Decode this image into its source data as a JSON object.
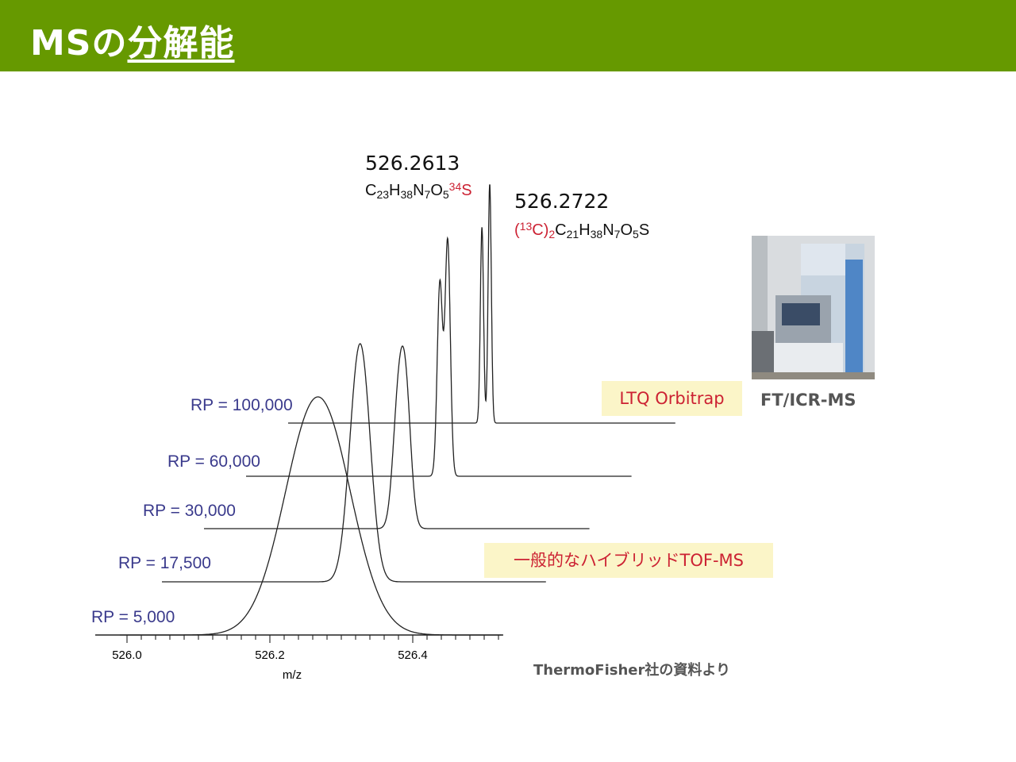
{
  "slide": {
    "title_main": "MSの",
    "title_underlined": "分解能",
    "orbitrap_label": "LTQ Orbitrap",
    "tof_label": "一般的なハイブリッドTOF-MS",
    "ft_label": "FT/ICR-MS",
    "source": "ThermoFisher社の資料より"
  },
  "colors": {
    "title_bar": "#669900",
    "rp_label": "#3a3a8c",
    "highlight_box": "#fbf5c8",
    "highlight_text": "#cc2233"
  },
  "chart_data": {
    "type": "line",
    "title": "",
    "xlabel": "m/z",
    "ylabel": "",
    "xlim": [
      525.99,
      526.54
    ],
    "x_ticks": [
      "526.0",
      "526.2",
      "526.4"
    ],
    "grid": false,
    "peaks": [
      {
        "mz": 526.2613,
        "label": "526.2613",
        "formula": [
          [
            "C",
            ""
          ],
          [
            "23",
            "sub"
          ],
          [
            "H",
            ""
          ],
          [
            "38",
            "sub"
          ],
          [
            "N",
            ""
          ],
          [
            "7",
            "sub"
          ],
          [
            "O",
            ""
          ],
          [
            "5",
            "sub"
          ],
          [
            "34",
            "sup-red"
          ],
          [
            "S",
            "red"
          ]
        ]
      },
      {
        "mz": 526.2722,
        "label": "526.2722",
        "formula": [
          [
            "(",
            "red"
          ],
          [
            "13",
            "sup-red"
          ],
          [
            "C)",
            "red"
          ],
          [
            "2",
            "sub-red"
          ],
          [
            "C",
            ""
          ],
          [
            "21",
            "sub"
          ],
          [
            "H",
            ""
          ],
          [
            "38",
            "sub"
          ],
          [
            "N",
            ""
          ],
          [
            "7",
            "sub"
          ],
          [
            "O",
            ""
          ],
          [
            "5",
            "sub"
          ],
          [
            "S",
            ""
          ]
        ]
      }
    ],
    "series": [
      {
        "name": "RP = 5,000",
        "resolving_power": 5000
      },
      {
        "name": "RP = 17,500",
        "resolving_power": 17500
      },
      {
        "name": "RP = 30,000",
        "resolving_power": 30000
      },
      {
        "name": "RP = 60,000",
        "resolving_power": 60000
      },
      {
        "name": "RP = 100,000",
        "resolving_power": 100000
      }
    ]
  }
}
